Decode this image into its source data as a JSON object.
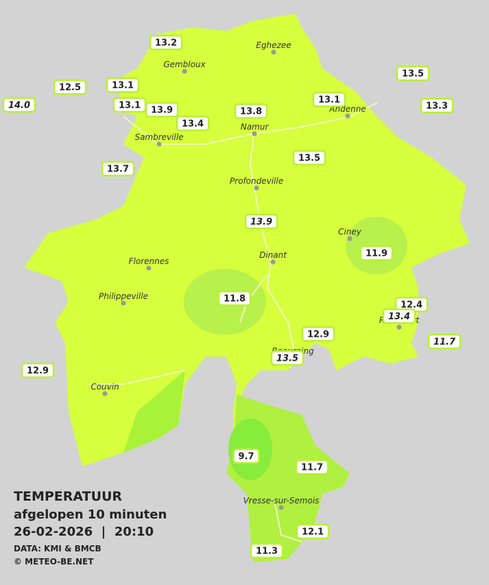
{
  "readings": [
    "13.2",
    "13.1",
    "12.5",
    "14.0",
    "13.1",
    "13.9",
    "13.4",
    "13.8",
    "13.1",
    "13.5",
    "13.3",
    "13.7",
    "13.5",
    "13.9",
    "11.9",
    "11.8",
    "12.4",
    "13.4",
    "12.9",
    "11.7",
    "13.5",
    "12.9",
    "9.7",
    "11.7",
    "12.1",
    "11.3"
  ],
  "cities": [
    "Eghezee",
    "Gembloux",
    "Andenne",
    "Namur",
    "Sambreville",
    "Profondeville",
    "Ciney",
    "Dinant",
    "Florennes",
    "Philippeville",
    "Rochefort",
    "Beauraing",
    "Couvin",
    "Vresse-sur-Semois"
  ],
  "footer": {
    "title": "TEMPERATUUR",
    "period": "afgelopen 10 minuten",
    "datetime": "26-02-2026  |  20:10",
    "source": "DATA: KMI & BMCB",
    "credit": "© METEO-BE.NET"
  }
}
